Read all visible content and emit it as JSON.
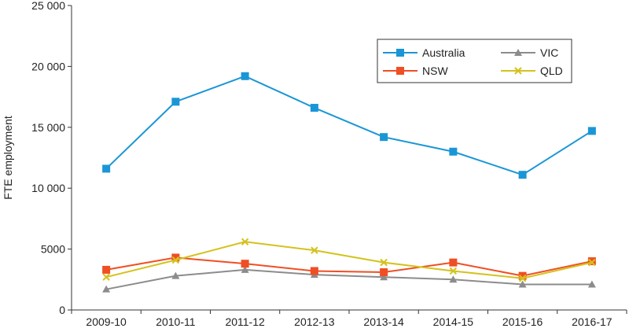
{
  "chart_data": {
    "type": "line",
    "title": "",
    "xlabel": "",
    "ylabel": "FTE employment",
    "ylim": [
      0,
      25000
    ],
    "yticks": [
      0,
      5000,
      10000,
      15000,
      20000,
      25000
    ],
    "ytick_labels": [
      "0",
      "5000",
      "10 000",
      "15 000",
      "20 000",
      "25 000"
    ],
    "categories": [
      "2009-10",
      "2010-11",
      "2011-12",
      "2012-13",
      "2013-14",
      "2014-15",
      "2015-16",
      "2016-17"
    ],
    "legend_position": "top-right",
    "series": [
      {
        "name": "Australia",
        "color": "#1a96d6",
        "marker": "square",
        "values": [
          11600,
          17100,
          19200,
          16600,
          14200,
          13000,
          11100,
          14700
        ]
      },
      {
        "name": "VIC",
        "color": "#8c8c8c",
        "marker": "triangle",
        "values": [
          1700,
          2800,
          3300,
          2900,
          2700,
          2500,
          2100,
          2100
        ]
      },
      {
        "name": "NSW",
        "color": "#f04e23",
        "marker": "square",
        "values": [
          3300,
          4300,
          3800,
          3200,
          3100,
          3900,
          2800,
          4000
        ]
      },
      {
        "name": "QLD",
        "color": "#d4c21c",
        "marker": "x",
        "values": [
          2700,
          4100,
          5600,
          4900,
          3900,
          3200,
          2600,
          3900
        ]
      }
    ]
  }
}
